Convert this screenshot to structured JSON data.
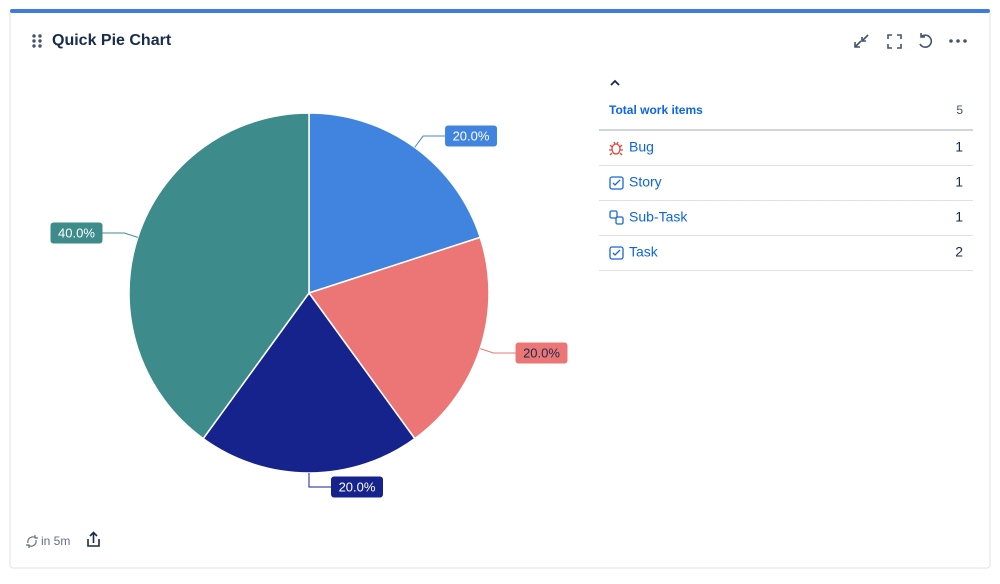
{
  "header": {
    "title": "Quick Pie Chart"
  },
  "chart_data": {
    "type": "pie",
    "categories": [
      "Bug",
      "Story",
      "Sub-Task",
      "Task"
    ],
    "values": [
      20,
      20,
      20,
      40
    ],
    "value_labels": [
      "20.0%",
      "20.0%",
      "20.0%",
      "40.0%"
    ],
    "colors": [
      "#4184e0",
      "#ec7676",
      "#16238c",
      "#3d8c8b"
    ]
  },
  "table": {
    "header": "Total work items",
    "total": 5,
    "counts": [
      1,
      1,
      1,
      2
    ]
  },
  "footer": {
    "refresh": "in 5m"
  }
}
